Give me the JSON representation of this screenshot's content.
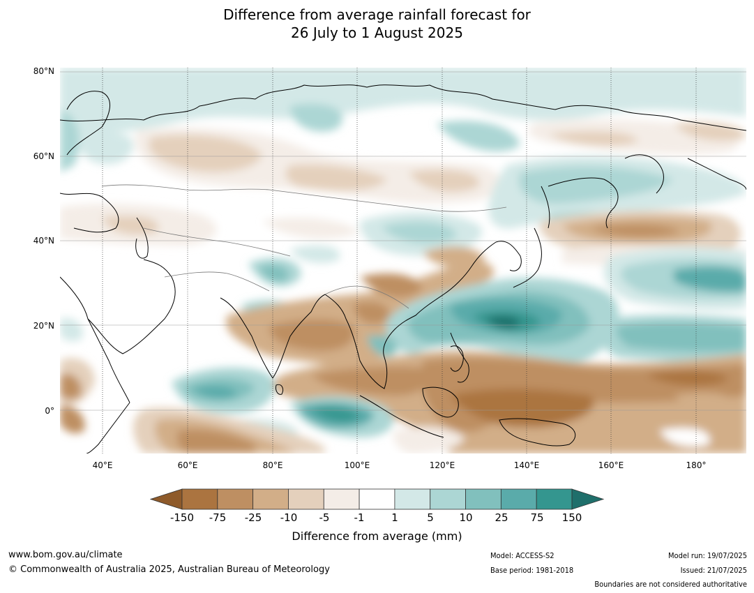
{
  "title_line1": "Difference from average rainfall forecast for",
  "title_line2": "26 July to 1 August 2025",
  "lat_labels": [
    "80°N",
    "60°N",
    "40°N",
    "20°N",
    "0°"
  ],
  "lon_labels": [
    "40°E",
    "60°E",
    "80°E",
    "100°E",
    "120°E",
    "140°E",
    "160°E",
    "180°"
  ],
  "colorbar": {
    "title": "Difference from average (mm)",
    "ticks": [
      "-150",
      "-75",
      "-25",
      "-10",
      "-5",
      "-1",
      "1",
      "5",
      "10",
      "25",
      "75",
      "150"
    ],
    "colors": [
      "#8e5a2a",
      "#ab7440",
      "#be8f62",
      "#d2ae88",
      "#e4d0bc",
      "#f4ede7",
      "#ffffff",
      "#d3e8e7",
      "#acd6d4",
      "#81c0bd",
      "#5aabaa",
      "#34968f",
      "#1f6f6b"
    ]
  },
  "footer": {
    "url": "www.bom.gov.au/climate",
    "copyright": "© Commonwealth of Australia 2025, Australian Bureau of Meteorology",
    "model": "Model: ACCESS-S2",
    "base_period": "Base period: 1981-2018",
    "model_run": "Model run: 19/07/2025",
    "issued": "Issued: 21/07/2025",
    "boundaries_note": "Boundaries are not considered authoritative"
  }
}
